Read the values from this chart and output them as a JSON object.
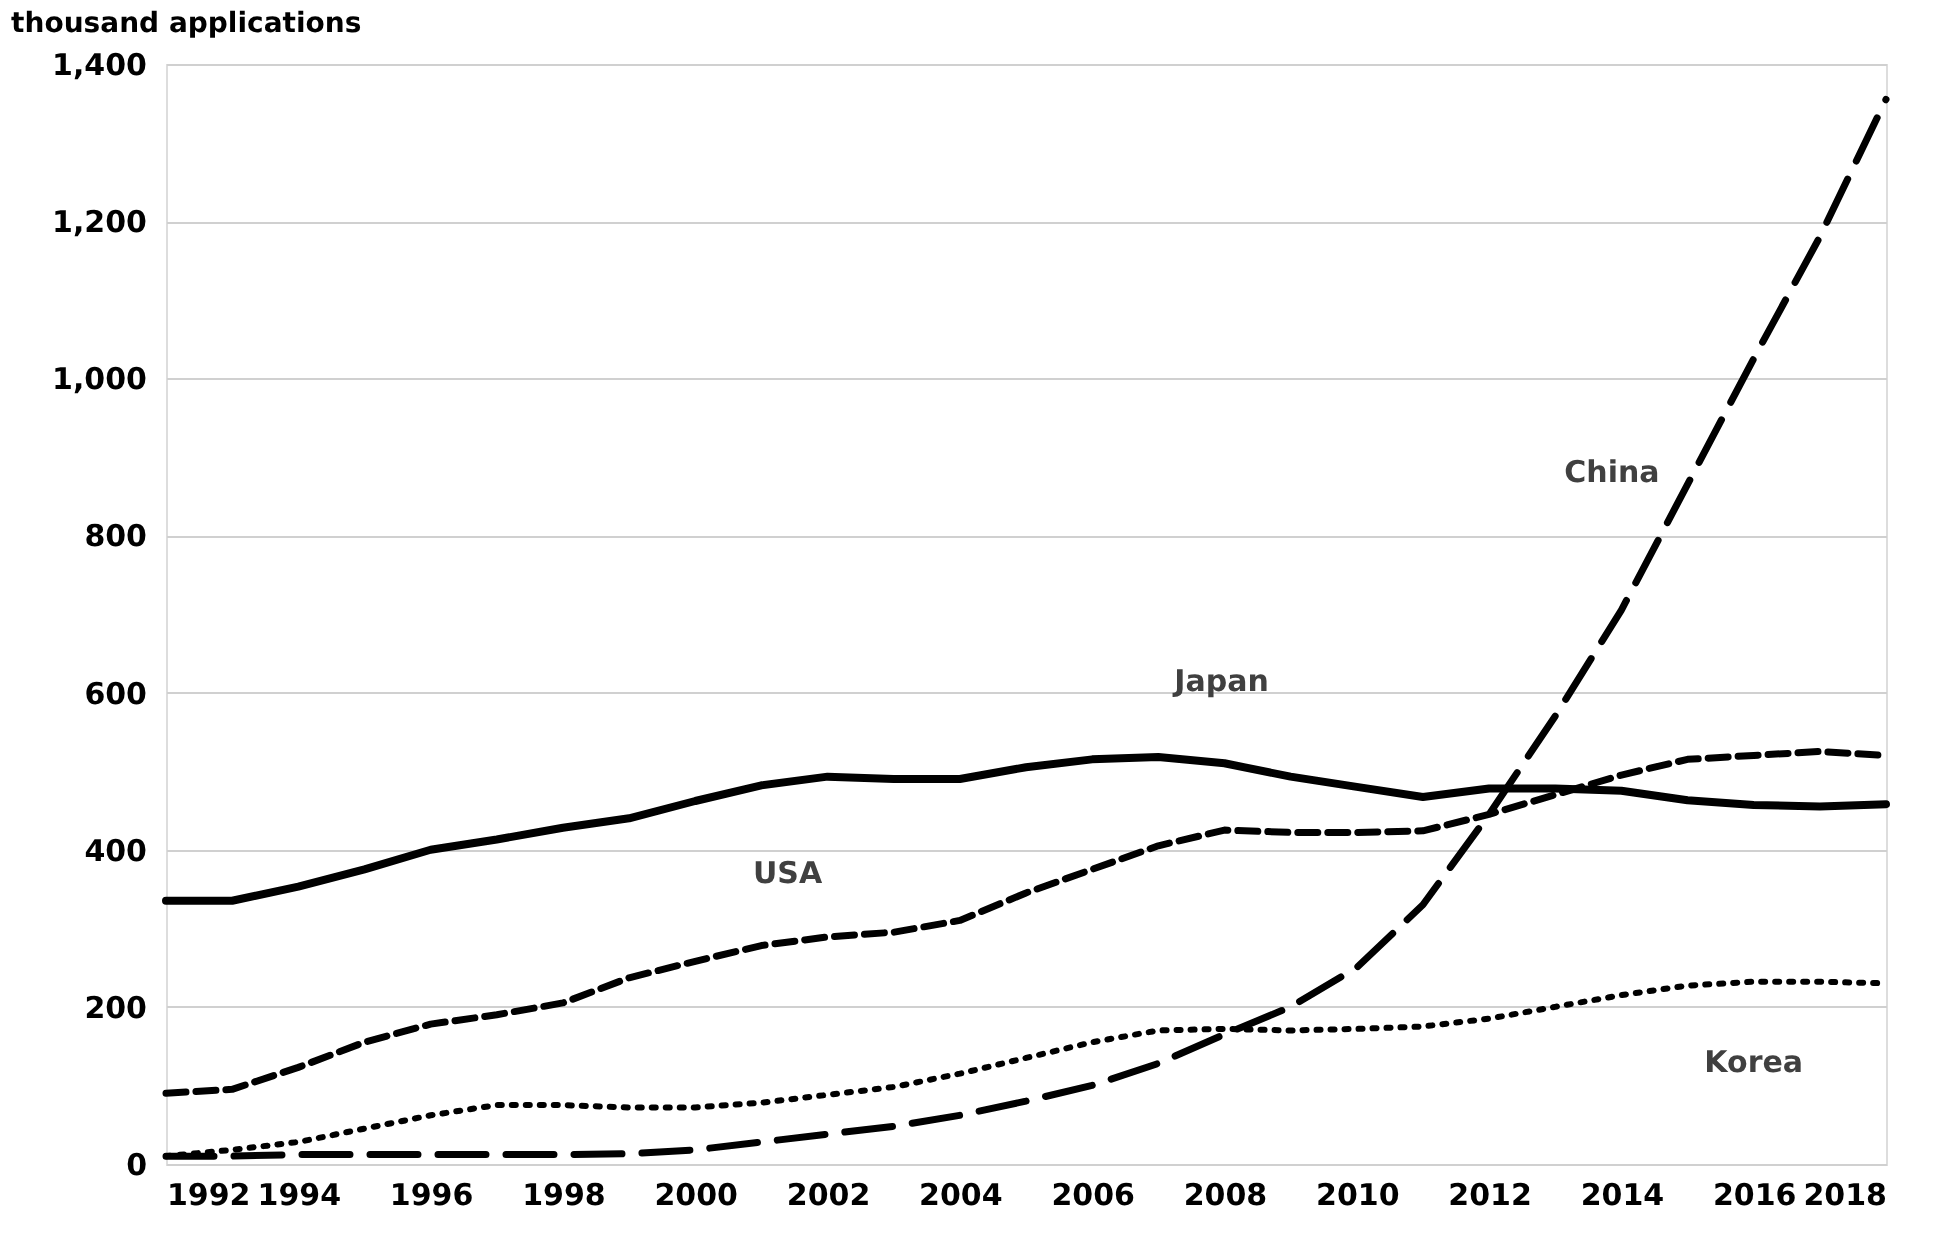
{
  "chart_data": {
    "type": "line",
    "ylabel": "thousand applications",
    "x": [
      1992,
      1993,
      1994,
      1995,
      1996,
      1997,
      1998,
      1999,
      2000,
      2001,
      2002,
      2003,
      2004,
      2005,
      2006,
      2007,
      2008,
      2009,
      2010,
      2011,
      2012,
      2013,
      2014,
      2015,
      2016,
      2017,
      2018
    ],
    "series": [
      {
        "name": "Japan",
        "color": "#000000",
        "line_style": "solid",
        "values": [
          335,
          335,
          353,
          375,
          400,
          413,
          428,
          440,
          462,
          482,
          493,
          490,
          490,
          505,
          515,
          518,
          510,
          493,
          480,
          467,
          478,
          478,
          475,
          463,
          457,
          455,
          458
        ]
      },
      {
        "name": "USA",
        "color": "#000000",
        "line_style": "dashed",
        "values": [
          90,
          95,
          123,
          155,
          178,
          190,
          205,
          237,
          258,
          278,
          289,
          295,
          310,
          345,
          375,
          405,
          425,
          422,
          422,
          424,
          445,
          470,
          495,
          515,
          520,
          525,
          520
        ]
      },
      {
        "name": "China",
        "color": "#000000",
        "line_style": "longdash",
        "values": [
          10,
          10,
          12,
          12,
          12,
          12,
          12,
          13,
          18,
          28,
          38,
          48,
          62,
          80,
          100,
          128,
          165,
          200,
          250,
          330,
          445,
          570,
          705,
          865,
          1025,
          1180,
          1355
        ]
      },
      {
        "name": "Korea",
        "color": "#000000",
        "line_style": "dotted",
        "values": [
          10,
          18,
          28,
          45,
          62,
          75,
          75,
          72,
          72,
          78,
          88,
          98,
          115,
          135,
          155,
          170,
          172,
          170,
          172,
          175,
          185,
          200,
          215,
          227,
          232,
          232,
          230
        ]
      }
    ],
    "xlim": [
      1992,
      2018
    ],
    "xticks": [
      1992,
      1994,
      1996,
      1998,
      2000,
      2002,
      2004,
      2006,
      2008,
      2010,
      2012,
      2014,
      2016,
      2018
    ],
    "ylim": [
      0,
      1400
    ],
    "yticks": [
      0,
      200,
      400,
      600,
      800,
      {
        "value": 1000,
        "label": "1,000"
      },
      {
        "value": 1200,
        "label": "1,200"
      },
      {
        "value": 1400,
        "label": "1,400"
      }
    ],
    "grid": "y",
    "legend": false
  }
}
